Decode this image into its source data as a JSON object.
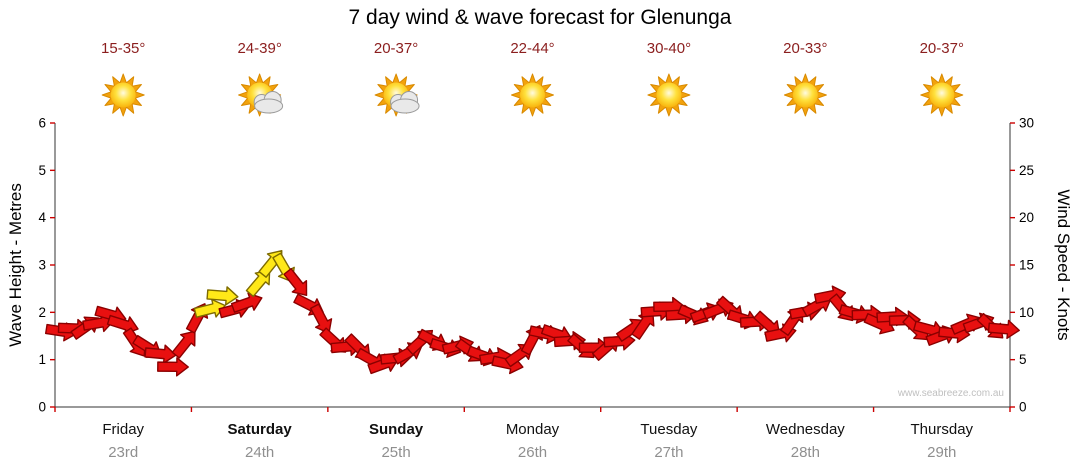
{
  "title": "7 day wind & wave forecast for Glenunga",
  "watermark": "www.seabreeze.com.au",
  "days": [
    {
      "name": "Friday",
      "date": "23rd",
      "temp": "15-35°",
      "icon": "sun",
      "bold": false
    },
    {
      "name": "Saturday",
      "date": "24th",
      "temp": "24-39°",
      "icon": "sun-cloud",
      "bold": true
    },
    {
      "name": "Sunday",
      "date": "25th",
      "temp": "20-37°",
      "icon": "sun-cloud",
      "bold": true
    },
    {
      "name": "Monday",
      "date": "26th",
      "temp": "22-44°",
      "icon": "sun",
      "bold": false
    },
    {
      "name": "Tuesday",
      "date": "27th",
      "temp": "30-40°",
      "icon": "sun",
      "bold": false
    },
    {
      "name": "Wednesday",
      "date": "28th",
      "temp": "20-33°",
      "icon": "sun",
      "bold": false
    },
    {
      "name": "Thursday",
      "date": "29th",
      "temp": "20-37°",
      "icon": "sun",
      "bold": false
    }
  ],
  "axes": {
    "left_label": "Wave Height - Metres",
    "right_label": "Wind Speed - Knots",
    "left_ticks": [
      0,
      1,
      2,
      3,
      4,
      5,
      6
    ],
    "right_ticks": [
      0,
      5,
      10,
      15,
      20,
      25,
      30
    ],
    "left_max": 6,
    "right_max": 30
  },
  "colors": {
    "arrow_red": "#e81010",
    "arrow_red_outline": "#8b0000",
    "arrow_yellow": "#ffe818",
    "arrow_yellow_outline": "#7d6a00",
    "temp_text": "#8b1e1e",
    "axis_line": "#333333",
    "axis_tick": "#cc0000",
    "tick_label": "#000000",
    "date_text": "#8f8f8f",
    "watermark_text": "#c0c0c0",
    "sun_ray": "#f2a20d",
    "cloud_fill": "#e9e9e9",
    "cloud_edge": "#9a9a9a"
  },
  "chart_data": {
    "type": "scatter",
    "marker": "wind-arrow",
    "title": "7 day wind & wave forecast for Glenunga",
    "ylabel_left": "Wave Height - Metres",
    "ylabel_right": "Wind Speed - Knots",
    "ylim_left_metres": [
      0,
      6
    ],
    "ylim_right_knots": [
      0,
      30
    ],
    "x_categories": [
      "Friday 23rd",
      "Saturday 24th",
      "Sunday 25th",
      "Monday 26th",
      "Tuesday 27th",
      "Wednesday 28th",
      "Thursday 29th"
    ],
    "points_per_day": 11,
    "wind_knots": [
      8,
      8.5,
      8.2,
      9,
      9.8,
      8.5,
      7,
      6.2,
      5.5,
      4.5,
      6.5,
      9.5,
      10.5,
      11.5,
      10.5,
      11,
      13,
      15.5,
      14.5,
      13,
      11,
      9,
      7,
      6.5,
      6,
      5.2,
      4.5,
      5,
      6,
      6.8,
      7,
      6.5,
      6.2,
      6,
      5.5,
      5,
      4.8,
      5.5,
      7,
      8,
      7.5,
      7,
      6.5,
      6,
      6.5,
      7,
      8,
      9,
      10,
      10.5,
      10,
      9.5,
      10,
      10.5,
      10,
      9.5,
      9,
      8.5,
      8,
      9,
      10,
      11,
      11.5,
      10.5,
      10,
      9.5,
      9,
      9.5,
      9,
      8.5,
      8,
      7.5,
      8,
      8.5,
      9,
      8.5,
      8
    ],
    "arrow_colors": "rrrrrrrrrrrryyrryyyrrrrrrrrrrrrrrrrrrrrrrrrrrrrrrrrrrrrrrrrrrrrrrrrrrrrrrrrr",
    "yellow_arrows_period": "Saturday midday peak ~15.5 knots",
    "grid": false,
    "legend_position": "none"
  }
}
